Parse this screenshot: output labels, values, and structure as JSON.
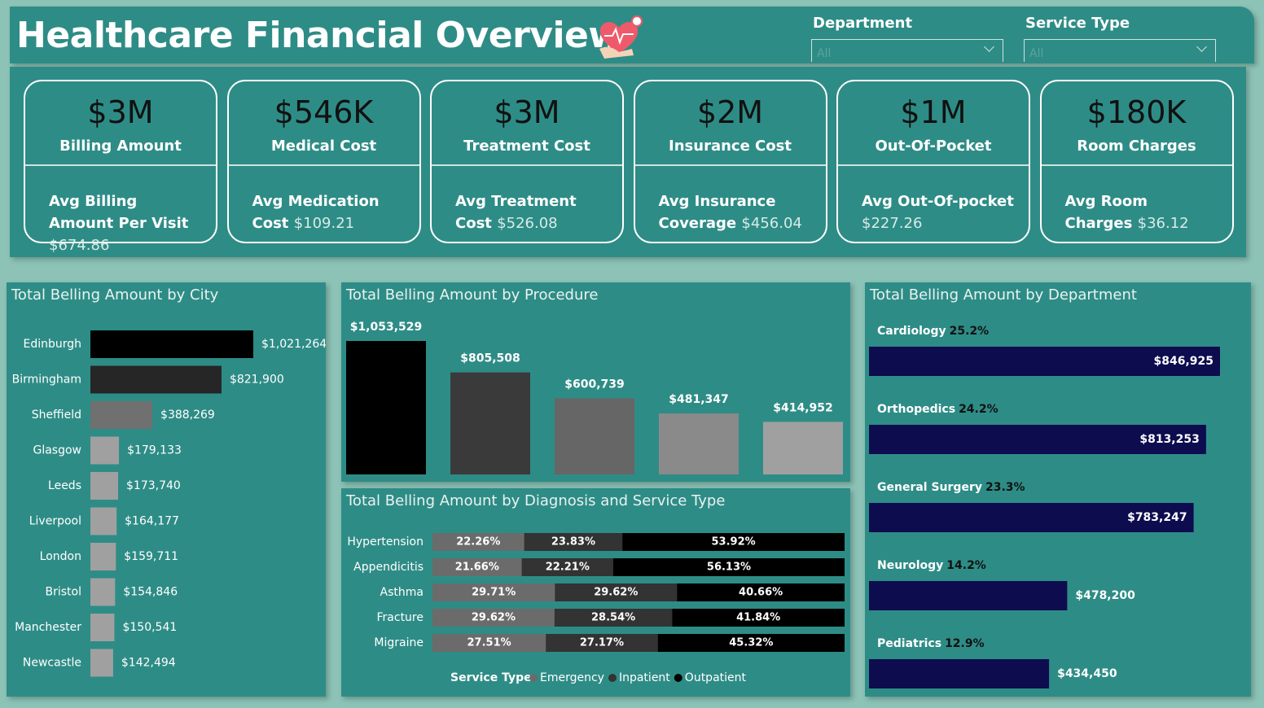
{
  "header": {
    "title": "Healthcare Financial Overview",
    "filters": [
      {
        "label": "Department",
        "value": "All"
      },
      {
        "label": "Service Type",
        "value": "All"
      }
    ]
  },
  "kpis": [
    {
      "value": "$3M",
      "label": "Billing Amount",
      "sub_label": "Avg Billing Amount Per Visit",
      "sub_value": "$674.86"
    },
    {
      "value": "$546K",
      "label": "Medical Cost",
      "sub_label": "Avg Medication Cost",
      "sub_value": "$109.21"
    },
    {
      "value": "$3M",
      "label": "Treatment Cost",
      "sub_label": "Avg Treatment Cost",
      "sub_value": "$526.08"
    },
    {
      "value": "$2M",
      "label": "Insurance Cost",
      "sub_label": "Avg Insurance Coverage",
      "sub_value": "$456.04"
    },
    {
      "value": "$1M",
      "label": "Out-Of-Pocket",
      "sub_label": "Avg Out-Of-pocket",
      "sub_value": "$227.26"
    },
    {
      "value": "$180K",
      "label": "Room Charges",
      "sub_label": "Avg Room Charges",
      "sub_value": "$36.12"
    }
  ],
  "chart_data": [
    {
      "type": "bar",
      "orientation": "horizontal",
      "title": "Total Belling Amount by City",
      "categories": [
        "Edinburgh",
        "Birmingham",
        "Sheffield",
        "Glasgow",
        "Leeds",
        "Liverpool",
        "London",
        "Bristol",
        "Manchester",
        "Newcastle"
      ],
      "values": [
        1021264,
        821900,
        388269,
        179133,
        173740,
        164177,
        159711,
        154846,
        150541,
        142494
      ],
      "value_labels": [
        "$1,021,264",
        "$821,900",
        "$388,269",
        "$179,133",
        "$173,740",
        "$164,177",
        "$159,711",
        "$154,846",
        "$150,541",
        "$142,494"
      ],
      "colors": [
        "#000000",
        "#262626",
        "#707070",
        "#a0a0a0",
        "#a0a0a0",
        "#a0a0a0",
        "#a0a0a0",
        "#a0a0a0",
        "#a0a0a0",
        "#a0a0a0"
      ]
    },
    {
      "type": "bar",
      "orientation": "vertical",
      "title": "Total Belling Amount by Procedure",
      "categories": [
        null,
        null,
        null,
        null,
        null
      ],
      "values": [
        1053529,
        805508,
        600739,
        481347,
        414952
      ],
      "value_labels": [
        "$1,053,529",
        "$805,508",
        "$600,739",
        "$481,347",
        "$414,952"
      ],
      "colors": [
        "#000000",
        "#3a3a3a",
        "#666666",
        "#8a8a8a",
        "#a0a0a0"
      ]
    },
    {
      "type": "bar",
      "orientation": "horizontal",
      "stacked": true,
      "title": "Total Belling Amount by Diagnosis and Service Type",
      "legend_title": "Service Type",
      "categories": [
        "Hypertension",
        "Appendicitis",
        "Asthma",
        "Fracture",
        "Migraine"
      ],
      "series": [
        {
          "name": "Emergency",
          "color": "#6b6b6b",
          "values": [
            22.26,
            21.66,
            29.71,
            29.62,
            27.51
          ],
          "value_labels": [
            "22.26%",
            "21.66%",
            "29.71%",
            "29.62%",
            "27.51%"
          ]
        },
        {
          "name": "Inpatient",
          "color": "#333333",
          "values": [
            23.83,
            22.21,
            29.62,
            28.54,
            27.17
          ],
          "value_labels": [
            "23.83%",
            "22.21%",
            "29.62%",
            "28.54%",
            "27.17%"
          ]
        },
        {
          "name": "Outpatient",
          "color": "#000000",
          "values": [
            53.92,
            56.13,
            40.66,
            41.84,
            45.32
          ],
          "value_labels": [
            "53.92%",
            "56.13%",
            "40.66%",
            "41.84%",
            "45.32%"
          ]
        }
      ]
    },
    {
      "type": "bar",
      "orientation": "horizontal",
      "title": "Total Belling Amount by Department",
      "color": "#0c0c4f",
      "categories": [
        "Cardiology",
        "Orthopedics",
        "General Surgery",
        "Neurology",
        "Pediatrics"
      ],
      "values": [
        846925,
        813253,
        783247,
        478200,
        434450
      ],
      "value_labels": [
        "$846,925",
        "$813,253",
        "$783,247",
        "$478,200",
        "$434,450"
      ],
      "shares": [
        25.2,
        24.2,
        23.3,
        14.2,
        12.9
      ],
      "share_labels": [
        "25.2%",
        "24.2%",
        "23.3%",
        "14.2%",
        "12.9%"
      ]
    }
  ]
}
